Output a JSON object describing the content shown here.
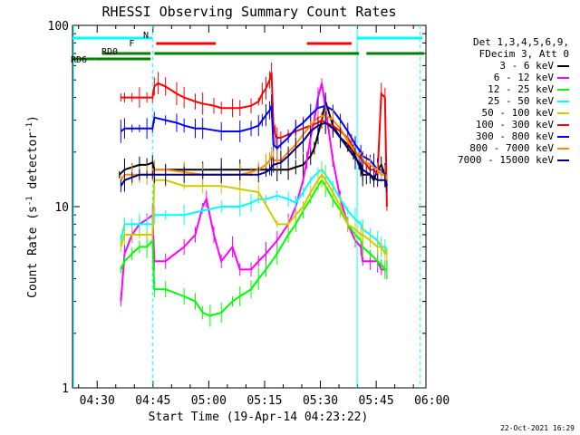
{
  "chart_data": {
    "type": "line",
    "title": "RHESSI Observing Summary Count Rates",
    "xlabel": "Start Time (19-Apr-14 04:23:22)",
    "ylabel": "Count Rate (s^-1 detector^-1)",
    "ylabel_parts": {
      "main": "Count Rate (s",
      "sup1": "-1",
      "mid": " detector",
      "sup2": "-1",
      "end": ")"
    },
    "y_scale": "log",
    "ylim": [
      1,
      100
    ],
    "yticks": [
      1,
      10,
      100
    ],
    "ytick_labels": [
      "1",
      "10",
      "100"
    ],
    "xlim_minutes": [
      0,
      95
    ],
    "xtick_labels": [
      "04:30",
      "04:45",
      "05:00",
      "05:15",
      "05:30",
      "05:45",
      "06:00"
    ],
    "xtick_minutes": [
      6.63,
      21.63,
      36.63,
      51.63,
      66.63,
      81.63,
      96.63
    ],
    "legend_header": [
      "Det 1,3,4,5,6,9,",
      "FDecim 3, Att 0"
    ],
    "series": [
      {
        "name": "3 - 6 keV",
        "color": "#000000",
        "x": [
          12.6,
          14,
          16,
          18,
          20,
          21.5,
          22,
          25,
          30,
          35,
          40,
          45,
          50,
          55,
          58,
          60,
          62,
          63,
          64,
          65,
          66,
          67,
          68,
          70,
          72,
          74,
          75.5,
          76,
          77,
          77.5,
          78,
          79,
          80,
          81,
          82,
          83,
          84,
          84.5
        ],
        "y": [
          15,
          16,
          16.5,
          17,
          17,
          17.5,
          16,
          16,
          16,
          16,
          16,
          16,
          16,
          16,
          16,
          16.5,
          17,
          18,
          19,
          21,
          25,
          30,
          38,
          28,
          24,
          22,
          20,
          19,
          17,
          16,
          15,
          15,
          15,
          14,
          16,
          17,
          15,
          13
        ]
      },
      {
        "name": "6 - 12 keV",
        "color": "#ff00ff",
        "x": [
          13,
          14,
          16,
          18,
          20,
          21.5,
          22,
          25,
          30,
          33,
          35,
          36,
          38,
          40,
          43,
          45,
          48,
          50,
          52,
          55,
          58,
          60,
          62,
          63,
          64,
          65,
          66,
          67,
          68,
          69,
          70,
          72,
          74,
          76,
          77.5,
          78,
          80,
          82,
          83,
          84,
          84.5
        ],
        "y": [
          3,
          5.5,
          7,
          8,
          8.5,
          9,
          5,
          5,
          6,
          7,
          10,
          11,
          7,
          5,
          6,
          4.5,
          4.5,
          5,
          5.5,
          6.5,
          8,
          10,
          14,
          18,
          24,
          30,
          40,
          48,
          35,
          25,
          18,
          11,
          8,
          6.5,
          6,
          5,
          5,
          5,
          4.5,
          4.5,
          4.5
        ]
      },
      {
        "name": "12 - 25 keV",
        "color": "#00ff00",
        "x": [
          13,
          14,
          16,
          18,
          20,
          21.5,
          22,
          25,
          30,
          33,
          35,
          37,
          40,
          43,
          45,
          48,
          50,
          52,
          55,
          58,
          60,
          62,
          64,
          66,
          67,
          68,
          70,
          72,
          74,
          76,
          77.5,
          78,
          80,
          82,
          83,
          84,
          84.5
        ],
        "y": [
          4.5,
          5,
          5.5,
          6,
          6,
          6.5,
          3.5,
          3.5,
          3.2,
          3,
          2.6,
          2.5,
          2.6,
          3,
          3.2,
          3.5,
          4,
          4.5,
          5.5,
          7,
          8,
          9.5,
          11,
          13,
          14,
          13,
          11,
          9.5,
          8,
          7,
          6.5,
          6,
          5.5,
          5,
          4.8,
          4.5,
          4.5
        ]
      },
      {
        "name": "25 - 50 keV",
        "color": "#00ffff",
        "x": [
          13,
          14,
          16,
          18,
          20,
          21.5,
          22,
          25,
          30,
          35,
          40,
          45,
          48,
          50,
          52,
          55,
          58,
          60,
          62,
          64,
          66,
          67,
          68,
          70,
          72,
          74,
          76,
          77.5,
          78,
          80,
          82,
          83,
          84,
          84.5
        ],
        "y": [
          6.5,
          8,
          8,
          8,
          8,
          8,
          9,
          9,
          9,
          9.5,
          10,
          10,
          10.5,
          11,
          11,
          11.5,
          11,
          10.5,
          12,
          14,
          15.5,
          16,
          15,
          13,
          11,
          9.5,
          8.5,
          8,
          7.5,
          7,
          6.5,
          6,
          6,
          5.5
        ]
      },
      {
        "name": "50 - 100 keV",
        "color": "#cccc00",
        "x": [
          13,
          14,
          16,
          18,
          20,
          21.5,
          22,
          25,
          30,
          35,
          40,
          45,
          50,
          55,
          58,
          60,
          62,
          64,
          66,
          67,
          68,
          70,
          72,
          74,
          76,
          77.5,
          78,
          80,
          82,
          83,
          84,
          84.5
        ],
        "y": [
          6,
          7,
          7,
          7,
          7,
          7,
          14,
          14,
          13,
          13,
          13,
          12.5,
          12,
          8,
          8,
          9,
          10,
          12,
          14,
          15,
          14,
          12,
          10,
          8,
          7.5,
          7,
          7,
          6.5,
          6,
          6,
          5.5,
          5.5
        ]
      },
      {
        "name": "100 - 300 keV",
        "color": "#ff0000",
        "x": [
          13,
          14,
          16,
          18,
          20,
          21.5,
          22,
          23,
          25,
          28,
          30,
          33,
          35,
          38,
          40,
          43,
          45,
          48,
          50,
          51,
          52,
          53,
          53.5,
          54,
          54.5,
          55,
          56,
          58,
          60,
          62,
          64,
          66,
          67,
          68,
          70,
          72,
          74,
          75,
          76,
          77,
          78,
          79,
          80,
          81,
          82,
          83,
          84,
          84.5
        ],
        "y": [
          40,
          40,
          40,
          40,
          40,
          40,
          46,
          48,
          46,
          42,
          40,
          38,
          37,
          36,
          35,
          35,
          35,
          36,
          38,
          42,
          45,
          50,
          55,
          28,
          25,
          24,
          24,
          25,
          26,
          27,
          28,
          29,
          30,
          29,
          28,
          26,
          24,
          22,
          20,
          19,
          18,
          17,
          16,
          16,
          15,
          42,
          40,
          10
        ]
      },
      {
        "name": "300 - 800 keV",
        "color": "#0000ff",
        "x": [
          13,
          14,
          16,
          18,
          20,
          21.5,
          22,
          25,
          28,
          30,
          33,
          35,
          40,
          45,
          48,
          50,
          51,
          52,
          53,
          53.5,
          54,
          55,
          56,
          58,
          60,
          62,
          64,
          66,
          68,
          70,
          72,
          74,
          76,
          77.5,
          78,
          80,
          81,
          82,
          83,
          84,
          84.5
        ],
        "y": [
          26,
          27,
          27,
          27,
          27,
          27,
          31,
          30,
          29,
          28,
          27,
          27,
          26,
          26,
          27,
          28,
          30,
          32,
          34,
          36,
          22,
          21,
          22,
          24,
          27,
          29,
          32,
          35,
          36,
          34,
          30,
          26,
          22,
          20,
          19,
          18,
          17,
          16,
          16,
          15,
          14
        ]
      },
      {
        "name": "800 - 7000 keV",
        "color": "#ff8c00",
        "x": [
          13,
          14,
          16,
          18,
          20,
          21.5,
          22,
          25,
          30,
          35,
          40,
          45,
          48,
          50,
          52,
          53,
          53.5,
          54,
          55,
          56,
          58,
          60,
          62,
          64,
          66,
          68,
          70,
          72,
          74,
          76,
          77.5,
          78,
          80,
          82,
          83,
          84,
          84.5
        ],
        "y": [
          14,
          15,
          15,
          15,
          15,
          15,
          16,
          16,
          15.5,
          15,
          15,
          15,
          15.5,
          16,
          17,
          18,
          19,
          18,
          18,
          18,
          20,
          22,
          25,
          28,
          31,
          32,
          30,
          27,
          23,
          20,
          19,
          18,
          17,
          16,
          15,
          15,
          14
        ]
      },
      {
        "name": "7000 - 15000 keV",
        "color": "#000080",
        "x": [
          13,
          14,
          16,
          18,
          20,
          21.5,
          22,
          25,
          30,
          35,
          40,
          45,
          50,
          52,
          53,
          53.5,
          54,
          56,
          58,
          60,
          62,
          64,
          66,
          68,
          70,
          72,
          74,
          76,
          77.5,
          78,
          80,
          82,
          84,
          84.5
        ],
        "y": [
          13,
          14,
          14.5,
          15,
          15,
          15,
          15,
          15,
          15,
          15,
          15,
          15,
          15,
          15.5,
          16,
          16.5,
          17,
          17.5,
          19,
          21,
          23,
          26,
          28,
          29,
          27,
          24,
          21,
          18.5,
          17,
          16,
          15,
          14,
          14,
          13
        ]
      }
    ],
    "annotations": {
      "night_label": "N",
      "flare_label": "F",
      "saa_label": "RD0",
      "decimation_label": "RD6",
      "night_color": "#00ffff",
      "flare_color": "#ff0000",
      "decimation_color": "#008000",
      "night_bars": [
        [
          0,
          21.5
        ],
        [
          76.5,
          94
        ]
      ],
      "night_boundaries_dashed": [
        21.5,
        93.5
      ],
      "night_boundaries_solid": [
        76.5
      ],
      "flare_bars": [
        [
          22.5,
          38.5
        ],
        [
          63,
          75
        ]
      ],
      "rd0_bars": [
        [
          8,
          21
        ],
        [
          22,
          55
        ],
        [
          54.5,
          77
        ],
        [
          79,
          94.5
        ]
      ],
      "rd6_bars": [
        [
          0,
          6
        ],
        [
          6,
          21
        ]
      ]
    },
    "legend_placement": "right",
    "grid": false
  },
  "footer": {
    "date_stamp": "22-Oct-2021 16:29"
  }
}
